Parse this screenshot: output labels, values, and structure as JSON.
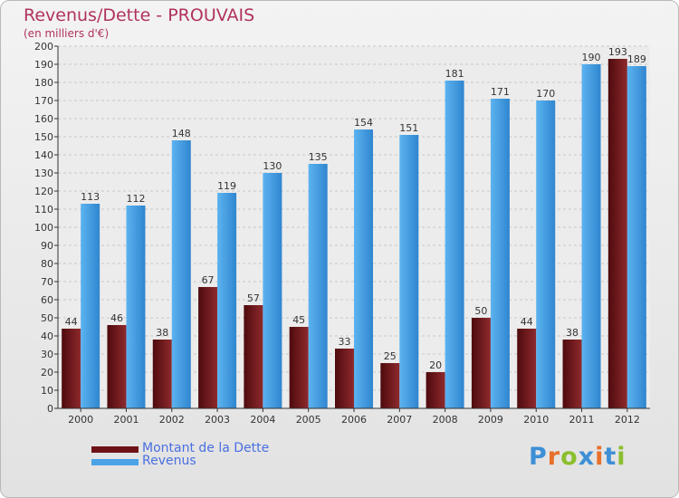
{
  "header": {
    "title": "Revenus/Dette - PROUVAIS",
    "subtitle": "(en milliers d'€)"
  },
  "chart_data": {
    "type": "bar",
    "title": "Revenus/Dette - PROUVAIS",
    "ylabel": "(en milliers d'€)",
    "xlabel": "",
    "ylim": [
      0,
      200
    ],
    "ytick_step": 10,
    "grid": true,
    "legend_position": "bottom-left",
    "categories": [
      "2000",
      "2001",
      "2002",
      "2003",
      "2004",
      "2005",
      "2006",
      "2007",
      "2008",
      "2009",
      "2010",
      "2011",
      "2012"
    ],
    "series": [
      {
        "name": "Montant de la Dette",
        "color": "#7a1a1d",
        "values": [
          44,
          46,
          38,
          67,
          57,
          45,
          33,
          25,
          20,
          50,
          44,
          38,
          193
        ]
      },
      {
        "name": "Revenus",
        "color": "#4aa3e6",
        "values": [
          113,
          112,
          148,
          119,
          130,
          135,
          154,
          151,
          181,
          171,
          170,
          190,
          189
        ]
      }
    ]
  },
  "legend": {
    "items": [
      {
        "label": "Montant de la Dette",
        "color": "#6e1215"
      },
      {
        "label": "Revenus",
        "color": "#4aa3e6"
      }
    ]
  },
  "logo": {
    "text": "Proxiti"
  }
}
